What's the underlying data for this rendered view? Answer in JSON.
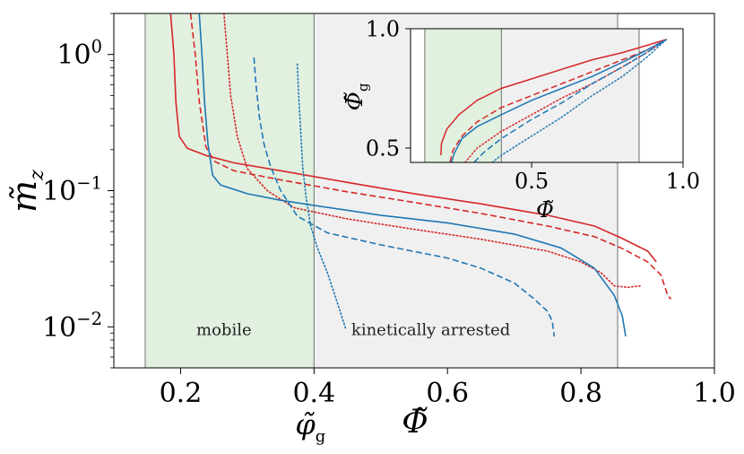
{
  "chart_data": [
    {
      "type": "line",
      "xlabel": "Φ̃",
      "ylabel": "m̃_z",
      "xlim": [
        0.1,
        1.0
      ],
      "ylim": [
        0.005,
        2.0
      ],
      "yscale": "log",
      "grid": false,
      "x_ticks": [
        {
          "value": 0.2,
          "label": "0.2"
        },
        {
          "value": 0.4,
          "label": "0.4"
        },
        {
          "value": 0.6,
          "label": "0.6"
        },
        {
          "value": 0.8,
          "label": "0.8"
        },
        {
          "value": 1.0,
          "label": "1.0"
        }
      ],
      "y_ticks": [
        {
          "value": 1,
          "base": "10",
          "exp": "0"
        },
        {
          "value": 0.1,
          "base": "10",
          "exp": "−1"
        },
        {
          "value": 0.01,
          "base": "10",
          "exp": "−2"
        }
      ],
      "regions": [
        {
          "label": "mobile",
          "x0": 0.147,
          "x1": 0.4,
          "color": "#e2f0e0",
          "label_pos": [
            0.265,
            0.0095
          ]
        },
        {
          "label": "kinetically arrested",
          "x0": 0.4,
          "x1": 0.855,
          "color": "#f0f0f0",
          "label_pos": [
            0.575,
            0.0095
          ]
        }
      ],
      "vlines": [
        0.147,
        0.4,
        0.855
      ],
      "phi_g_marker": {
        "value": 0.4,
        "label": "φ̃",
        "subscript": "g"
      },
      "series": [
        {
          "color": "#d62728",
          "style": "solid",
          "points": [
            [
              0.185,
              2.0
            ],
            [
              0.19,
              1.0
            ],
            [
              0.193,
              0.45
            ],
            [
              0.198,
              0.25
            ],
            [
              0.21,
              0.205
            ],
            [
              0.24,
              0.18
            ],
            [
              0.28,
              0.16
            ],
            [
              0.35,
              0.14
            ],
            [
              0.45,
              0.115
            ],
            [
              0.55,
              0.095
            ],
            [
              0.65,
              0.08
            ],
            [
              0.75,
              0.066
            ],
            [
              0.82,
              0.055
            ],
            [
              0.86,
              0.045
            ],
            [
              0.9,
              0.036
            ],
            [
              0.913,
              0.03
            ]
          ]
        },
        {
          "color": "#d62728",
          "style": "dashed",
          "points": [
            [
              0.215,
              2.0
            ],
            [
              0.222,
              1.0
            ],
            [
              0.228,
              0.45
            ],
            [
              0.238,
              0.21
            ],
            [
              0.25,
              0.165
            ],
            [
              0.28,
              0.14
            ],
            [
              0.35,
              0.12
            ],
            [
              0.45,
              0.098
            ],
            [
              0.55,
              0.082
            ],
            [
              0.65,
              0.068
            ],
            [
              0.75,
              0.055
            ],
            [
              0.82,
              0.046
            ],
            [
              0.86,
              0.038
            ],
            [
              0.9,
              0.03
            ],
            [
              0.92,
              0.024
            ],
            [
              0.93,
              0.017
            ],
            [
              0.935,
              0.016
            ]
          ]
        },
        {
          "color": "#d62728",
          "style": "dotted",
          "points": [
            [
              0.265,
              2.0
            ],
            [
              0.27,
              1.0
            ],
            [
              0.275,
              0.5
            ],
            [
              0.285,
              0.25
            ],
            [
              0.3,
              0.145
            ],
            [
              0.33,
              0.1
            ],
            [
              0.37,
              0.075
            ],
            [
              0.45,
              0.062
            ],
            [
              0.55,
              0.052
            ],
            [
              0.65,
              0.044
            ],
            [
              0.75,
              0.036
            ],
            [
              0.8,
              0.03
            ],
            [
              0.83,
              0.025
            ],
            [
              0.85,
              0.02
            ],
            [
              0.87,
              0.0195
            ],
            [
              0.89,
              0.02
            ]
          ]
        },
        {
          "color": "#1f77b4",
          "style": "solid",
          "points": [
            [
              0.228,
              2.0
            ],
            [
              0.232,
              1.0
            ],
            [
              0.236,
              0.45
            ],
            [
              0.241,
              0.22
            ],
            [
              0.248,
              0.13
            ],
            [
              0.26,
              0.11
            ],
            [
              0.3,
              0.095
            ],
            [
              0.35,
              0.085
            ],
            [
              0.4,
              0.078
            ],
            [
              0.5,
              0.066
            ],
            [
              0.6,
              0.058
            ],
            [
              0.7,
              0.048
            ],
            [
              0.77,
              0.038
            ],
            [
              0.82,
              0.027
            ],
            [
              0.85,
              0.017
            ],
            [
              0.862,
              0.012
            ],
            [
              0.867,
              0.0085
            ]
          ]
        },
        {
          "color": "#1f77b4",
          "style": "dashed",
          "points": [
            [
              0.31,
              0.95
            ],
            [
              0.313,
              0.6
            ],
            [
              0.318,
              0.35
            ],
            [
              0.325,
              0.22
            ],
            [
              0.335,
              0.15
            ],
            [
              0.35,
              0.1
            ],
            [
              0.375,
              0.065
            ],
            [
              0.42,
              0.049
            ],
            [
              0.5,
              0.04
            ],
            [
              0.6,
              0.032
            ],
            [
              0.65,
              0.027
            ],
            [
              0.7,
              0.021
            ],
            [
              0.73,
              0.016
            ],
            [
              0.75,
              0.013
            ],
            [
              0.757,
              0.011
            ],
            [
              0.76,
              0.0085
            ]
          ]
        },
        {
          "color": "#1f77b4",
          "style": "dotted",
          "points": [
            [
              0.375,
              0.85
            ],
            [
              0.377,
              0.5
            ],
            [
              0.38,
              0.28
            ],
            [
              0.383,
              0.15
            ],
            [
              0.388,
              0.09
            ],
            [
              0.395,
              0.055
            ],
            [
              0.405,
              0.038
            ],
            [
              0.42,
              0.025
            ],
            [
              0.435,
              0.015
            ],
            [
              0.448,
              0.0095
            ]
          ]
        }
      ]
    },
    {
      "type": "line",
      "xlabel": "Φ̃",
      "ylabel": "Φ̃_g",
      "xlim": [
        0.1,
        1.0
      ],
      "ylim": [
        0.44,
        1.0
      ],
      "grid": false,
      "x_ticks": [
        {
          "value": 0.5,
          "label": "0.5"
        },
        {
          "value": 1.0,
          "label": "1.0"
        }
      ],
      "y_ticks": [
        {
          "value": 0.5,
          "label": "0.5"
        },
        {
          "value": 1.0,
          "label": "1.0"
        }
      ],
      "regions": [
        {
          "x0": 0.147,
          "x1": 0.4,
          "color": "#e2f0e0"
        },
        {
          "x0": 0.4,
          "x1": 0.855,
          "color": "#f0f0f0"
        }
      ],
      "vlines": [
        0.147,
        0.4,
        0.855
      ],
      "series": [
        {
          "color": "#d62728",
          "style": "solid",
          "points": [
            [
              0.2,
              0.47
            ],
            [
              0.202,
              0.52
            ],
            [
              0.22,
              0.58
            ],
            [
              0.26,
              0.64
            ],
            [
              0.32,
              0.7
            ],
            [
              0.4,
              0.75
            ],
            [
              0.5,
              0.79
            ],
            [
              0.6,
              0.83
            ],
            [
              0.7,
              0.87
            ],
            [
              0.8,
              0.9
            ],
            [
              0.88,
              0.93
            ],
            [
              0.945,
              0.955
            ]
          ]
        },
        {
          "color": "#d62728",
          "style": "dashed",
          "points": [
            [
              0.23,
              0.44
            ],
            [
              0.24,
              0.49
            ],
            [
              0.27,
              0.55
            ],
            [
              0.32,
              0.61
            ],
            [
              0.4,
              0.67
            ],
            [
              0.5,
              0.72
            ],
            [
              0.6,
              0.77
            ],
            [
              0.7,
              0.82
            ],
            [
              0.8,
              0.87
            ],
            [
              0.88,
              0.91
            ],
            [
              0.945,
              0.955
            ]
          ]
        },
        {
          "color": "#d62728",
          "style": "dotted",
          "points": [
            [
              0.28,
              0.44
            ],
            [
              0.32,
              0.5
            ],
            [
              0.4,
              0.57
            ],
            [
              0.5,
              0.64
            ],
            [
              0.6,
              0.71
            ],
            [
              0.7,
              0.77
            ],
            [
              0.8,
              0.84
            ],
            [
              0.88,
              0.9
            ],
            [
              0.945,
              0.955
            ]
          ]
        },
        {
          "color": "#1f77b4",
          "style": "solid",
          "points": [
            [
              0.235,
              0.44
            ],
            [
              0.245,
              0.48
            ],
            [
              0.27,
              0.54
            ],
            [
              0.32,
              0.59
            ],
            [
              0.4,
              0.64
            ],
            [
              0.5,
              0.7
            ],
            [
              0.6,
              0.75
            ],
            [
              0.7,
              0.8
            ],
            [
              0.8,
              0.86
            ],
            [
              0.88,
              0.91
            ],
            [
              0.945,
              0.955
            ]
          ]
        },
        {
          "color": "#1f77b4",
          "style": "dashed",
          "points": [
            [
              0.31,
              0.44
            ],
            [
              0.34,
              0.48
            ],
            [
              0.4,
              0.54
            ],
            [
              0.5,
              0.62
            ],
            [
              0.6,
              0.69
            ],
            [
              0.7,
              0.77
            ],
            [
              0.8,
              0.84
            ],
            [
              0.88,
              0.9
            ],
            [
              0.945,
              0.955
            ]
          ]
        },
        {
          "color": "#1f77b4",
          "style": "dotted",
          "points": [
            [
              0.37,
              0.44
            ],
            [
              0.4,
              0.47
            ],
            [
              0.5,
              0.55
            ],
            [
              0.6,
              0.63
            ],
            [
              0.7,
              0.72
            ],
            [
              0.8,
              0.8
            ],
            [
              0.88,
              0.88
            ],
            [
              0.945,
              0.955
            ]
          ]
        }
      ]
    }
  ]
}
